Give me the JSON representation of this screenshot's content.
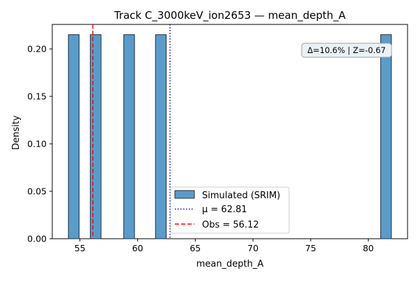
{
  "chart_data": {
    "type": "bar",
    "title": "Track C_3000keV_ion2653 — mean_depth_A",
    "xlabel": "mean_depth_A",
    "ylabel": "Density",
    "xlim": [
      52.6,
      83.4
    ],
    "ylim": [
      0,
      0.2258
    ],
    "x_ticks": [
      55,
      60,
      65,
      70,
      75,
      80
    ],
    "y_ticks": [
      0.0,
      0.05,
      0.1,
      0.15,
      0.2
    ],
    "y_tick_labels": [
      "0.00",
      "0.05",
      "0.10",
      "0.15",
      "0.20"
    ],
    "bar_color": "#5a9bc9",
    "bar_edge_color": "#1f2f3f",
    "bins": [
      {
        "x0": 54.0,
        "x1": 54.93,
        "value": 0.215
      },
      {
        "x0": 55.9,
        "x1": 56.83,
        "value": 0.215
      },
      {
        "x0": 58.8,
        "x1": 59.73,
        "value": 0.215
      },
      {
        "x0": 61.55,
        "x1": 62.48,
        "value": 0.215
      },
      {
        "x0": 81.07,
        "x1": 82.0,
        "value": 0.215
      }
    ],
    "series": [
      {
        "name": "Simulated (SRIM)"
      }
    ],
    "mean_line": {
      "label": "μ = 62.81",
      "value": 62.81,
      "color": "#0000ff",
      "style": "dotted"
    },
    "obs_line": {
      "label": "Obs = 56.12",
      "value": 56.12,
      "color": "#ff0000",
      "style": "dashed"
    },
    "annotation": "Δ=10.6% | Z=-0.67",
    "legend_position": "lower-center"
  }
}
